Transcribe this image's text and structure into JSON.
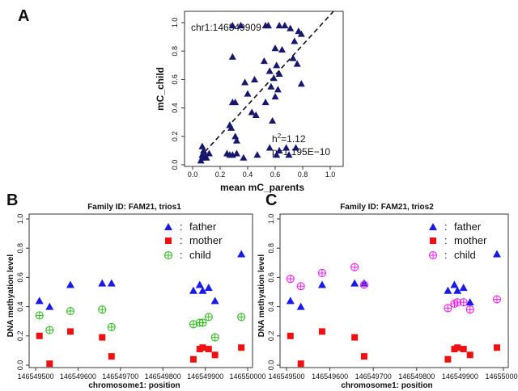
{
  "colors": {
    "navy": "#17186b",
    "father": "#1a1ae6",
    "mother": "#ee1111",
    "child_green": "#33bb22",
    "child_magenta": "#ee22ee",
    "axis": "#333333"
  },
  "chart_data": [
    {
      "panel": "A",
      "type": "scatter",
      "xlabel": "mean mC_parents",
      "ylabel": "mC_child",
      "xlim": [
        0,
        1
      ],
      "ylim": [
        0,
        1
      ],
      "xticks": [
        "0.0",
        "0.2",
        "0.4",
        "0.6",
        "0.8",
        "1.0"
      ],
      "yticks": [
        "0.0",
        "0.2",
        "0.4",
        "0.6",
        "0.8",
        "1.0"
      ],
      "annotation_locus": "chr1:146549909",
      "annotation_h2_label": "h",
      "annotation_h2_sup": "2",
      "annotation_h2_value": "=1.12",
      "annotation_p": "p=1.195E−10",
      "marker": "triangle",
      "points": [
        [
          0.29,
          0.98
        ],
        [
          0.35,
          0.98
        ],
        [
          0.53,
          0.98
        ],
        [
          0.55,
          0.98
        ],
        [
          0.63,
          0.98
        ],
        [
          0.67,
          0.98
        ],
        [
          0.71,
          0.96
        ],
        [
          0.77,
          0.94
        ],
        [
          0.79,
          0.92
        ],
        [
          0.74,
          0.87
        ],
        [
          0.6,
          0.82
        ],
        [
          0.65,
          0.81
        ],
        [
          0.29,
          0.76
        ],
        [
          0.73,
          0.75
        ],
        [
          0.76,
          0.71
        ],
        [
          0.52,
          0.73
        ],
        [
          0.61,
          0.7
        ],
        [
          0.56,
          0.66
        ],
        [
          0.63,
          0.64
        ],
        [
          0.59,
          0.61
        ],
        [
          0.45,
          0.6
        ],
        [
          0.38,
          0.58
        ],
        [
          0.57,
          0.55
        ],
        [
          0.62,
          0.53
        ],
        [
          0.79,
          0.57
        ],
        [
          0.4,
          0.5
        ],
        [
          0.6,
          0.48
        ],
        [
          0.29,
          0.44
        ],
        [
          0.31,
          0.44
        ],
        [
          0.53,
          0.44
        ],
        [
          0.43,
          0.37
        ],
        [
          0.46,
          0.35
        ],
        [
          0.27,
          0.28
        ],
        [
          0.28,
          0.26
        ],
        [
          0.58,
          0.31
        ],
        [
          0.07,
          0.13
        ],
        [
          0.31,
          0.2
        ],
        [
          0.32,
          0.17
        ],
        [
          0.08,
          0.1
        ],
        [
          0.07,
          0.07
        ],
        [
          0.09,
          0.07
        ],
        [
          0.12,
          0.08
        ],
        [
          0.1,
          0.05
        ],
        [
          0.07,
          0.05
        ],
        [
          0.06,
          0.03
        ],
        [
          0.25,
          0.08
        ],
        [
          0.27,
          0.07
        ],
        [
          0.29,
          0.07
        ],
        [
          0.32,
          0.08
        ],
        [
          0.37,
          0.05
        ],
        [
          0.47,
          0.07
        ],
        [
          0.56,
          0.12
        ],
        [
          0.63,
          0.1
        ],
        [
          0.68,
          0.12
        ],
        [
          0.75,
          0.12
        ],
        [
          0.61,
          0.07
        ],
        [
          0.7,
          0.07
        ]
      ],
      "fit_line": [
        [
          0.05,
          0.05
        ],
        [
          1.0,
          1.0
        ]
      ]
    },
    {
      "panel": "B",
      "type": "scatter",
      "title": "Family ID: FAM21, trios1",
      "xlabel": "chromosome1: position",
      "ylabel": "DNA methyation level",
      "xlim": [
        146549500,
        146550000
      ],
      "ylim": [
        0,
        1
      ],
      "xticks": [
        "146549500",
        "146549600",
        "146549700",
        "146549800",
        "146549900",
        "146550000"
      ],
      "yticks": [
        "0.0",
        "0.2",
        "0.4",
        "0.6",
        "0.8",
        "1.0"
      ],
      "legend": [
        "father",
        "mother",
        "child"
      ],
      "legend_separator": ":",
      "series": [
        {
          "name": "father",
          "marker": "triangle",
          "points": [
            [
              146549509,
              0.44
            ],
            [
              146549533,
              0.4
            ],
            [
              146549582,
              0.55
            ],
            [
              146549657,
              0.56
            ],
            [
              146549679,
              0.56
            ],
            [
              146549872,
              0.51
            ],
            [
              146549887,
              0.55
            ],
            [
              146549894,
              0.51
            ],
            [
              146549908,
              0.53
            ],
            [
              146549923,
              0.44
            ],
            [
              146549985,
              0.76
            ]
          ]
        },
        {
          "name": "mother",
          "marker": "square",
          "points": [
            [
              146549509,
              0.2
            ],
            [
              146549533,
              0.01
            ],
            [
              146549582,
              0.23
            ],
            [
              146549657,
              0.19
            ],
            [
              146549679,
              0.06
            ],
            [
              146549872,
              0.04
            ],
            [
              146549887,
              0.11
            ],
            [
              146549894,
              0.12
            ],
            [
              146549908,
              0.11
            ],
            [
              146549923,
              0.07
            ],
            [
              146549985,
              0.12
            ]
          ]
        },
        {
          "name": "child",
          "marker": "circle-plus",
          "points": [
            [
              146549509,
              0.34
            ],
            [
              146549533,
              0.24
            ],
            [
              146549582,
              0.37
            ],
            [
              146549657,
              0.38
            ],
            [
              146549679,
              0.26
            ],
            [
              146549872,
              0.28
            ],
            [
              146549887,
              0.29
            ],
            [
              146549894,
              0.29
            ],
            [
              146549908,
              0.33
            ],
            [
              146549923,
              0.19
            ],
            [
              146549985,
              0.33
            ]
          ]
        }
      ]
    },
    {
      "panel": "C",
      "type": "scatter",
      "title": "Family ID: FAM21, trios2",
      "xlabel": "chromosome1: position",
      "ylabel": "DNA methyation level",
      "xlim": [
        146549500,
        146550000
      ],
      "ylim": [
        0,
        1
      ],
      "xticks": [
        "146549500",
        "146549600",
        "146549700",
        "146549800",
        "146549900",
        "146550000"
      ],
      "yticks": [
        "0.0",
        "0.2",
        "0.4",
        "0.6",
        "0.8",
        "1.0"
      ],
      "legend": [
        "father",
        "mother",
        "child"
      ],
      "legend_separator": ":",
      "series": [
        {
          "name": "father",
          "marker": "triangle",
          "points": [
            [
              146549509,
              0.44
            ],
            [
              146549533,
              0.4
            ],
            [
              146549582,
              0.55
            ],
            [
              146549657,
              0.56
            ],
            [
              146549679,
              0.56
            ],
            [
              146549872,
              0.51
            ],
            [
              146549887,
              0.55
            ],
            [
              146549894,
              0.51
            ],
            [
              146549908,
              0.53
            ],
            [
              146549923,
              0.43
            ],
            [
              146549985,
              0.76
            ]
          ]
        },
        {
          "name": "mother",
          "marker": "square",
          "points": [
            [
              146549509,
              0.2
            ],
            [
              146549533,
              0.01
            ],
            [
              146549582,
              0.23
            ],
            [
              146549657,
              0.19
            ],
            [
              146549679,
              0.06
            ],
            [
              146549872,
              0.04
            ],
            [
              146549887,
              0.11
            ],
            [
              146549894,
              0.12
            ],
            [
              146549908,
              0.11
            ],
            [
              146549923,
              0.07
            ],
            [
              146549985,
              0.12
            ]
          ]
        },
        {
          "name": "child",
          "marker": "circle-plus",
          "points": [
            [
              146549509,
              0.59
            ],
            [
              146549533,
              0.54
            ],
            [
              146549582,
              0.63
            ],
            [
              146549657,
              0.67
            ],
            [
              146549679,
              0.55
            ],
            [
              146549872,
              0.39
            ],
            [
              146549887,
              0.42
            ],
            [
              146549894,
              0.43
            ],
            [
              146549908,
              0.43
            ],
            [
              146549923,
              0.38
            ],
            [
              146549985,
              0.45
            ]
          ]
        }
      ]
    }
  ]
}
